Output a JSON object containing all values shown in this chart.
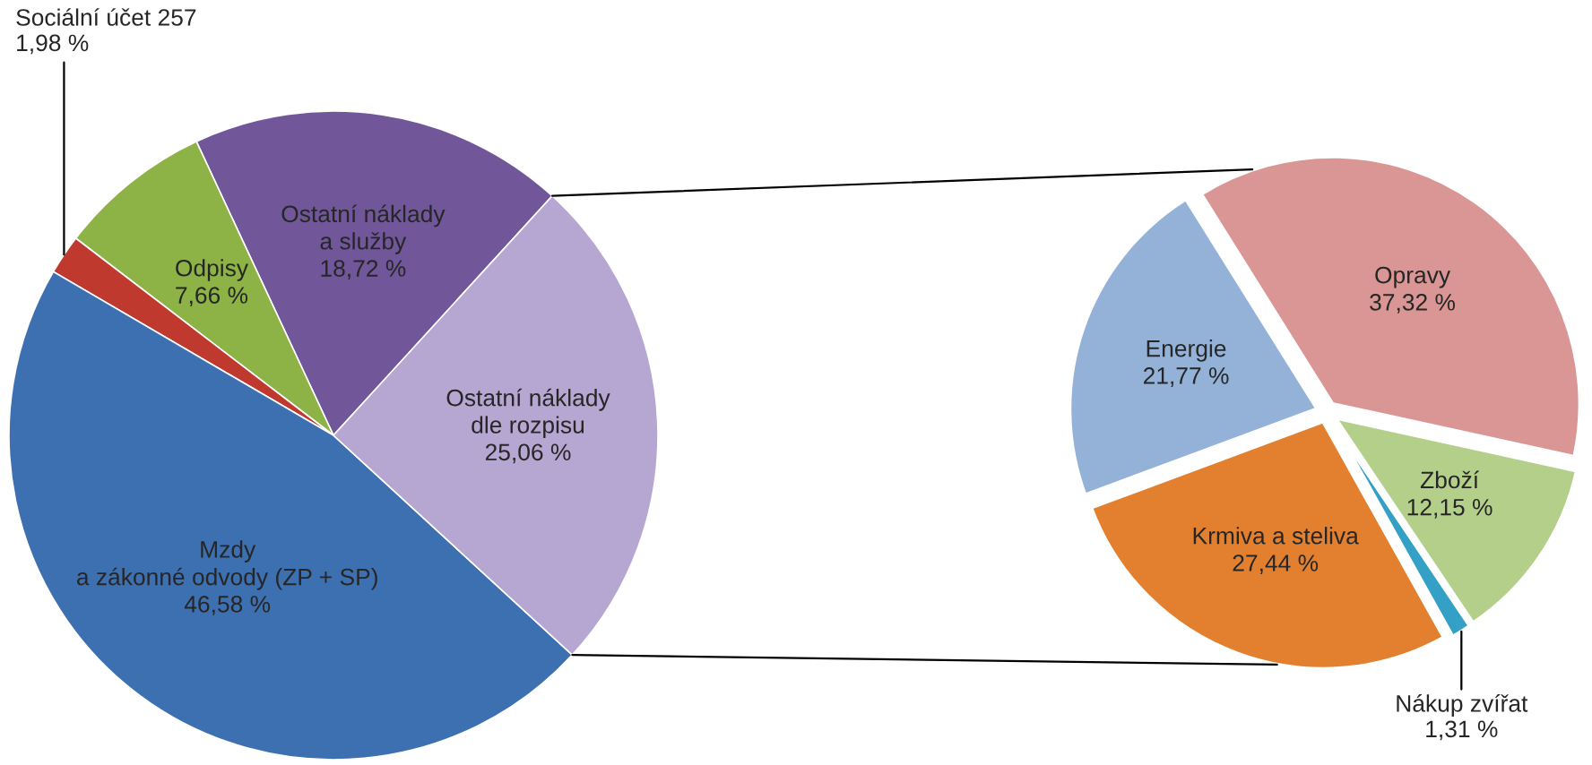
{
  "chart_data": [
    {
      "type": "pie",
      "categories": [
        "Ostatní náklady\na služby",
        "Odpisy",
        "Sociální účet 257",
        "Mzdy\na zákonné odvody (ZP + SP)",
        "Ostatní náklady\ndle rozpisu"
      ],
      "values": [
        18.72,
        7.66,
        1.98,
        46.58,
        25.06
      ],
      "value_labels": [
        "18,72 %",
        "7,66 %",
        "1,98 %",
        "46,58 %",
        "25,06 %"
      ],
      "colors": [
        "#71579a",
        "#8db347",
        "#c0392f",
        "#3d70b0",
        "#b6a6d2"
      ]
    },
    {
      "type": "pie",
      "categories": [
        "Opravy",
        "Zboží",
        "Nákup zvířat",
        "Krmiva a steliva",
        "Energie"
      ],
      "values": [
        37.32,
        12.15,
        1.31,
        27.44,
        21.77
      ],
      "value_labels": [
        "37,32 %",
        "12,15 %",
        "1,31 %",
        "27,44 %",
        "21,77 %"
      ],
      "colors": [
        "#d99695",
        "#b4cf8a",
        "#35a0c6",
        "#e2802f",
        "#94b2d8"
      ]
    }
  ]
}
